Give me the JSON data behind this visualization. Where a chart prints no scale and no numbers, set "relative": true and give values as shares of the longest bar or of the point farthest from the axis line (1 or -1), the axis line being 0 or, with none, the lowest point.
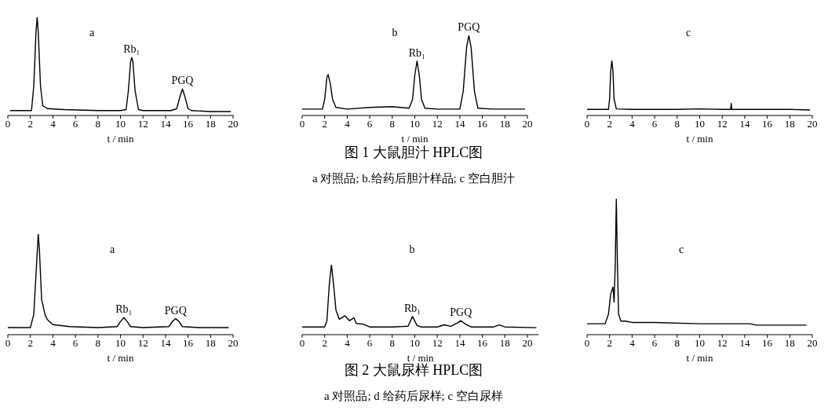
{
  "chart_data": [
    {
      "type": "line",
      "relative": true,
      "xlabel": "t / min",
      "xlim": [
        0,
        20
      ],
      "xticks": [
        0,
        2,
        4,
        6,
        8,
        10,
        12,
        14,
        16,
        18,
        20
      ],
      "annotations": [
        "a",
        {
          "text": "Rb₁",
          "x": 11.0,
          "y": 0.59
        },
        {
          "text": "PGQ",
          "x": 15.5,
          "y": 0.27
        }
      ],
      "series": [
        {
          "color": "#000000",
          "x": [
            0.2,
            1.5,
            2.1,
            2.3,
            2.5,
            2.6,
            2.7,
            2.9,
            3.1,
            3.5,
            5,
            8,
            10,
            10.5,
            10.7,
            10.9,
            11,
            11.1,
            11.3,
            11.6,
            12,
            14.5,
            15,
            15.3,
            15.5,
            15.7,
            16,
            16.3,
            18,
            19.8
          ],
          "values": [
            0.05,
            0.05,
            0.05,
            0.3,
            0.85,
            1,
            0.85,
            0.3,
            0.1,
            0.07,
            0.06,
            0.05,
            0.05,
            0.06,
            0.25,
            0.55,
            0.59,
            0.55,
            0.25,
            0.06,
            0.05,
            0.05,
            0.07,
            0.2,
            0.27,
            0.2,
            0.07,
            0.05,
            0.04,
            0.04
          ]
        }
      ]
    },
    {
      "type": "line",
      "relative": true,
      "title": "图 1  大鼠胆汁 HPLC图",
      "subtitle": "a 对照品; b.给药后胆汁样品; c 空白胆汁",
      "xlabel": "t / min",
      "xlim": [
        0,
        20
      ],
      "xticks": [
        0,
        2,
        4,
        6,
        8,
        10,
        12,
        14,
        16,
        18,
        20
      ],
      "annotations": [
        "b",
        {
          "text": "Rb₁",
          "x": 10.2,
          "y": 0.68
        },
        {
          "text": "PGQ",
          "x": 14.8,
          "y": 1
        }
      ],
      "series": [
        {
          "color": "#000000",
          "x": [
            0,
            1.8,
            2.0,
            2.2,
            2.3,
            2.5,
            2.7,
            3,
            4,
            6,
            8,
            9.5,
            9.8,
            10,
            10.2,
            10.4,
            10.6,
            10.9,
            12,
            14,
            14.3,
            14.6,
            14.8,
            15,
            15.3,
            15.6,
            17,
            19.8
          ],
          "values": [
            0.08,
            0.08,
            0.2,
            0.48,
            0.51,
            0.4,
            0.2,
            0.1,
            0.08,
            0.1,
            0.11,
            0.09,
            0.2,
            0.5,
            0.68,
            0.5,
            0.2,
            0.09,
            0.08,
            0.08,
            0.3,
            0.85,
            1,
            0.85,
            0.3,
            0.09,
            0.08,
            0.08
          ]
        }
      ]
    },
    {
      "type": "line",
      "relative": true,
      "xlabel": "t / min",
      "xlim": [
        0,
        20
      ],
      "xticks": [
        0,
        2,
        4,
        6,
        8,
        10,
        12,
        14,
        16,
        18,
        20
      ],
      "annotations": [
        "c"
      ],
      "series": [
        {
          "color": "#000000",
          "x": [
            0,
            1.9,
            2.0,
            2.1,
            2.2,
            2.3,
            2.4,
            2.6,
            4,
            8,
            10,
            12,
            12.75,
            12.8,
            12.85,
            14,
            16,
            18,
            19.8
          ],
          "values": [
            0.11,
            0.11,
            0.3,
            0.8,
            1,
            0.8,
            0.3,
            0.12,
            0.11,
            0.11,
            0.12,
            0.11,
            0.11,
            0.22,
            0.11,
            0.11,
            0.11,
            0.11,
            0.1
          ]
        }
      ]
    },
    {
      "type": "line",
      "relative": true,
      "xlabel": "t / min",
      "xlim": [
        0,
        20
      ],
      "xticks": [
        0,
        2,
        4,
        6,
        8,
        10,
        12,
        14,
        16,
        18,
        20
      ],
      "annotations": [
        "a",
        {
          "text": "Rb₁",
          "x": 10.3,
          "y": 0.17
        },
        {
          "text": "PGQ",
          "x": 14.9,
          "y": 0.16
        }
      ],
      "series": [
        {
          "color": "#000000",
          "x": [
            0,
            2,
            2.3,
            2.5,
            2.7,
            2.8,
            3,
            3.3,
            3.5,
            4,
            5.5,
            8,
            9.7,
            10,
            10.3,
            10.6,
            10.9,
            12,
            14.3,
            14.6,
            14.9,
            15.2,
            15.5,
            17,
            19.6
          ],
          "values": [
            0.07,
            0.07,
            0.2,
            0.6,
            1,
            0.85,
            0.35,
            0.2,
            0.15,
            0.1,
            0.08,
            0.07,
            0.08,
            0.13,
            0.17,
            0.13,
            0.08,
            0.07,
            0.08,
            0.13,
            0.16,
            0.13,
            0.08,
            0.07,
            0.07
          ]
        }
      ]
    },
    {
      "type": "line",
      "relative": true,
      "title": "图 2  大鼠尿样 HPLC图",
      "subtitle": "a 对照品; d 给药后尿样; c 空白尿样",
      "xlabel": "t / min",
      "xlim": [
        0,
        21
      ],
      "xticks": [
        0,
        2,
        4,
        6,
        8,
        10,
        12,
        14,
        16,
        18,
        20
      ],
      "annotations": [
        "b",
        {
          "text": "Rb₁",
          "x": 9.8,
          "y": 0.26
        },
        {
          "text": "PGQ",
          "x": 14.1,
          "y": 0.2
        }
      ],
      "series": [
        {
          "color": "#000000",
          "x": [
            0,
            2,
            2.2,
            2.4,
            2.6,
            2.8,
            3,
            3.3,
            3.8,
            4.2,
            4.6,
            4.8,
            5.4,
            6,
            8,
            9.4,
            9.8,
            10.2,
            10.6,
            12,
            12.6,
            13.2,
            13.8,
            14.1,
            14.5,
            15,
            17,
            17.5,
            18,
            20.8
          ],
          "values": [
            0.11,
            0.11,
            0.2,
            0.7,
            1,
            0.7,
            0.35,
            0.22,
            0.27,
            0.2,
            0.24,
            0.16,
            0.15,
            0.11,
            0.11,
            0.12,
            0.26,
            0.13,
            0.11,
            0.11,
            0.14,
            0.12,
            0.17,
            0.2,
            0.15,
            0.11,
            0.11,
            0.14,
            0.11,
            0.1
          ]
        }
      ]
    },
    {
      "type": "line",
      "relative": true,
      "xlabel": "t / min",
      "xlim": [
        0,
        20
      ],
      "xticks": [
        0,
        2,
        4,
        6,
        8,
        10,
        12,
        14,
        16,
        18,
        20
      ],
      "annotations": [
        "c"
      ],
      "series": [
        {
          "color": "#000000",
          "x": [
            0,
            1.6,
            1.9,
            2.1,
            2.3,
            2.4,
            2.5,
            2.6,
            2.7,
            2.8,
            3,
            3.4,
            4,
            6,
            10,
            14.5,
            15,
            18,
            19.5
          ],
          "values": [
            0.08,
            0.08,
            0.15,
            0.3,
            0.35,
            0.24,
            0.5,
            1,
            0.5,
            0.15,
            0.1,
            0.1,
            0.09,
            0.09,
            0.08,
            0.08,
            0.07,
            0.07,
            0.07
          ]
        }
      ]
    }
  ]
}
